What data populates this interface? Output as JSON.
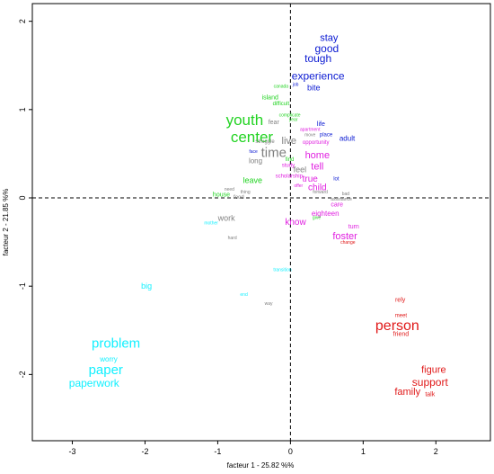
{
  "chart_data": {
    "type": "scatter",
    "xlabel": "facteur  1  - 25.82 %%",
    "ylabel": "facteur  2  - 21.85 %%",
    "xlim": [
      -3.55,
      2.75
    ],
    "ylim": [
      -2.75,
      2.2
    ],
    "xticks": [
      -3,
      -2,
      -1,
      0,
      1,
      2
    ],
    "yticks": [
      -2,
      -1,
      0,
      1,
      2
    ],
    "reference_lines": {
      "x": 0,
      "y": 0,
      "style": "dashed"
    },
    "grid": false,
    "colors": {
      "blue": "#0a19d2",
      "green": "#22d322",
      "gray": "#808080",
      "magenta": "#e020e0",
      "cyan": "#12f0ff",
      "red": "#e01818"
    },
    "words": [
      {
        "text": "stay",
        "x": 0.53,
        "y": 1.81,
        "size": 11,
        "color": "blue"
      },
      {
        "text": "good",
        "x": 0.5,
        "y": 1.69,
        "size": 12,
        "color": "blue"
      },
      {
        "text": "tough",
        "x": 0.38,
        "y": 1.58,
        "size": 12,
        "color": "blue"
      },
      {
        "text": "experience",
        "x": 0.38,
        "y": 1.38,
        "size": 12,
        "color": "blue"
      },
      {
        "text": "bite",
        "x": 0.32,
        "y": 1.25,
        "size": 9,
        "color": "blue"
      },
      {
        "text": "job",
        "x": 0.07,
        "y": 1.28,
        "size": 5,
        "color": "blue"
      },
      {
        "text": "canada",
        "x": -0.13,
        "y": 1.26,
        "size": 5,
        "color": "green"
      },
      {
        "text": "island",
        "x": -0.28,
        "y": 1.13,
        "size": 7,
        "color": "green"
      },
      {
        "text": "difficult",
        "x": -0.13,
        "y": 1.06,
        "size": 6,
        "color": "green"
      },
      {
        "text": "complicate",
        "x": -0.01,
        "y": 0.93,
        "size": 5,
        "color": "green"
      },
      {
        "text": "year",
        "x": 0.04,
        "y": 0.88,
        "size": 5,
        "color": "green"
      },
      {
        "text": "fear",
        "x": -0.23,
        "y": 0.85,
        "size": 7,
        "color": "gray"
      },
      {
        "text": "youth",
        "x": -0.63,
        "y": 0.88,
        "size": 17,
        "color": "green"
      },
      {
        "text": "center",
        "x": -0.53,
        "y": 0.69,
        "size": 17,
        "color": "green"
      },
      {
        "text": "life",
        "x": 0.42,
        "y": 0.83,
        "size": 7,
        "color": "blue"
      },
      {
        "text": "apartment",
        "x": 0.27,
        "y": 0.77,
        "size": 5,
        "color": "magenta"
      },
      {
        "text": "move",
        "x": 0.27,
        "y": 0.71,
        "size": 5,
        "color": "gray"
      },
      {
        "text": "place",
        "x": 0.49,
        "y": 0.71,
        "size": 6,
        "color": "blue"
      },
      {
        "text": "adult",
        "x": 0.78,
        "y": 0.67,
        "size": 8,
        "color": "blue"
      },
      {
        "text": "struggle",
        "x": -0.35,
        "y": 0.63,
        "size": 6,
        "color": "gray"
      },
      {
        "text": "live",
        "x": -0.02,
        "y": 0.64,
        "size": 11,
        "color": "gray"
      },
      {
        "text": "opportunity",
        "x": 0.35,
        "y": 0.62,
        "size": 6,
        "color": "magenta"
      },
      {
        "text": "face",
        "x": -0.51,
        "y": 0.52,
        "size": 5,
        "color": "blue"
      },
      {
        "text": "time",
        "x": -0.23,
        "y": 0.51,
        "size": 15,
        "color": "gray"
      },
      {
        "text": "home",
        "x": 0.37,
        "y": 0.48,
        "size": 11,
        "color": "magenta"
      },
      {
        "text": "long",
        "x": -0.48,
        "y": 0.42,
        "size": 8,
        "color": "gray"
      },
      {
        "text": "find",
        "x": -0.01,
        "y": 0.43,
        "size": 6,
        "color": "green"
      },
      {
        "text": "study",
        "x": -0.03,
        "y": 0.36,
        "size": 6,
        "color": "magenta"
      },
      {
        "text": "feel",
        "x": 0.13,
        "y": 0.32,
        "size": 9,
        "color": "gray"
      },
      {
        "text": "tell",
        "x": 0.37,
        "y": 0.35,
        "size": 11,
        "color": "magenta"
      },
      {
        "text": "scholarship",
        "x": -0.02,
        "y": 0.24,
        "size": 6,
        "color": "magenta"
      },
      {
        "text": "true",
        "x": 0.27,
        "y": 0.21,
        "size": 10,
        "color": "magenta"
      },
      {
        "text": "lot",
        "x": 0.63,
        "y": 0.21,
        "size": 6,
        "color": "blue"
      },
      {
        "text": "leave",
        "x": -0.52,
        "y": 0.2,
        "size": 9,
        "color": "green"
      },
      {
        "text": "offer",
        "x": 0.11,
        "y": 0.13,
        "size": 5,
        "color": "magenta"
      },
      {
        "text": "child",
        "x": 0.37,
        "y": 0.11,
        "size": 10,
        "color": "magenta"
      },
      {
        "text": "need",
        "x": -0.84,
        "y": 0.09,
        "size": 5,
        "color": "gray"
      },
      {
        "text": "thing",
        "x": -0.62,
        "y": 0.06,
        "size": 5,
        "color": "gray"
      },
      {
        "text": "forward",
        "x": 0.41,
        "y": 0.06,
        "size": 5,
        "color": "gray"
      },
      {
        "text": "bad",
        "x": 0.76,
        "y": 0.04,
        "size": 5,
        "color": "gray"
      },
      {
        "text": "house",
        "x": -0.95,
        "y": 0.03,
        "size": 7,
        "color": "green"
      },
      {
        "text": "food",
        "x": -0.71,
        "y": 0.0,
        "size": 6,
        "color": "gray"
      },
      {
        "text": "assistance",
        "x": 0.7,
        "y": -0.02,
        "size": 5,
        "color": "gray"
      },
      {
        "text": "care",
        "x": 0.64,
        "y": -0.08,
        "size": 7,
        "color": "magenta"
      },
      {
        "text": "eighteen",
        "x": 0.48,
        "y": -0.18,
        "size": 8,
        "color": "magenta"
      },
      {
        "text": "give",
        "x": 0.36,
        "y": -0.23,
        "size": 5,
        "color": "green"
      },
      {
        "text": "work",
        "x": -0.88,
        "y": -0.23,
        "size": 9,
        "color": "gray"
      },
      {
        "text": "know",
        "x": 0.07,
        "y": -0.28,
        "size": 10,
        "color": "magenta"
      },
      {
        "text": "mother",
        "x": -1.09,
        "y": -0.29,
        "size": 5,
        "color": "cyan"
      },
      {
        "text": "turn",
        "x": 0.87,
        "y": -0.33,
        "size": 7,
        "color": "magenta"
      },
      {
        "text": "foster",
        "x": 0.75,
        "y": -0.44,
        "size": 11,
        "color": "magenta"
      },
      {
        "text": "hard",
        "x": -0.8,
        "y": -0.46,
        "size": 5,
        "color": "gray"
      },
      {
        "text": "change",
        "x": 0.79,
        "y": -0.51,
        "size": 5,
        "color": "red"
      },
      {
        "text": "transition",
        "x": -0.11,
        "y": -0.82,
        "size": 5,
        "color": "cyan"
      },
      {
        "text": "big",
        "x": -1.98,
        "y": -1.0,
        "size": 9,
        "color": "cyan"
      },
      {
        "text": "end",
        "x": -0.64,
        "y": -1.1,
        "size": 5,
        "color": "cyan"
      },
      {
        "text": "way",
        "x": -0.3,
        "y": -1.2,
        "size": 5,
        "color": "gray"
      },
      {
        "text": "rely",
        "x": 1.51,
        "y": -1.16,
        "size": 7,
        "color": "red"
      },
      {
        "text": "meet",
        "x": 1.52,
        "y": -1.34,
        "size": 6,
        "color": "red"
      },
      {
        "text": "person",
        "x": 1.47,
        "y": -1.45,
        "size": 16,
        "color": "red"
      },
      {
        "text": "friend",
        "x": 1.52,
        "y": -1.55,
        "size": 7,
        "color": "red"
      },
      {
        "text": "problem",
        "x": -2.4,
        "y": -1.65,
        "size": 15,
        "color": "cyan"
      },
      {
        "text": "worry",
        "x": -2.5,
        "y": -1.83,
        "size": 8,
        "color": "cyan"
      },
      {
        "text": "paper",
        "x": -2.54,
        "y": -1.95,
        "size": 15,
        "color": "cyan"
      },
      {
        "text": "paperwork",
        "x": -2.7,
        "y": -2.1,
        "size": 12,
        "color": "cyan"
      },
      {
        "text": "figure",
        "x": 1.97,
        "y": -1.95,
        "size": 11,
        "color": "red"
      },
      {
        "text": "support",
        "x": 1.92,
        "y": -2.09,
        "size": 12,
        "color": "red"
      },
      {
        "text": "family",
        "x": 1.61,
        "y": -2.2,
        "size": 11,
        "color": "red"
      },
      {
        "text": "talk",
        "x": 1.92,
        "y": -2.23,
        "size": 7,
        "color": "red"
      }
    ]
  }
}
